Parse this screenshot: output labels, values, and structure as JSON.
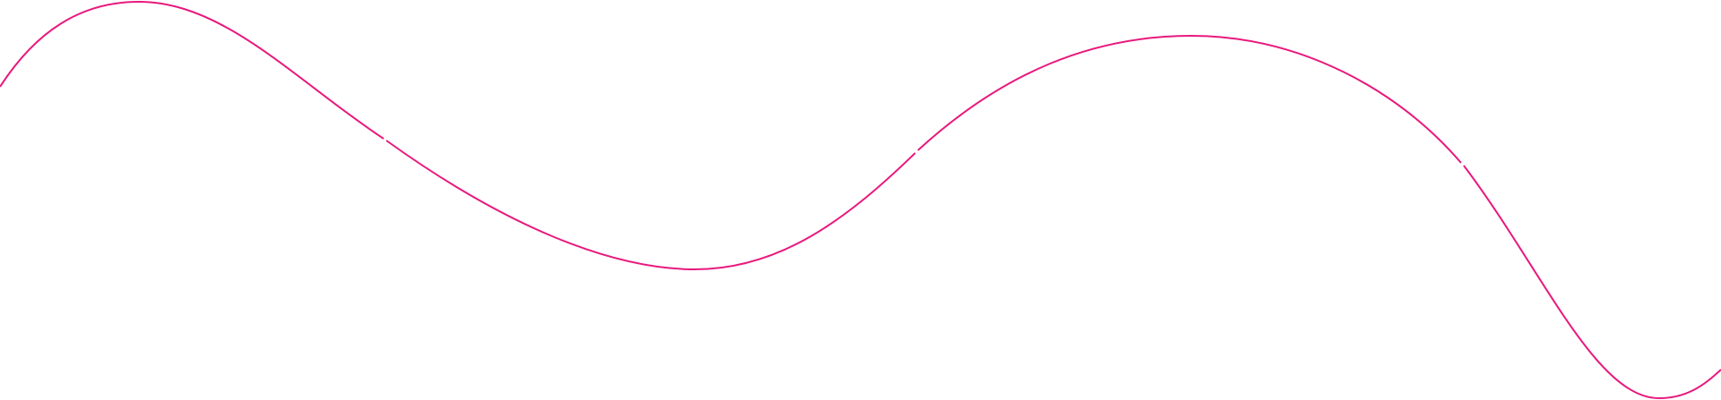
{
  "decoration": {
    "type": "wave-line",
    "stroke_color": "#e8197d",
    "background_color": "#ffffff"
  }
}
